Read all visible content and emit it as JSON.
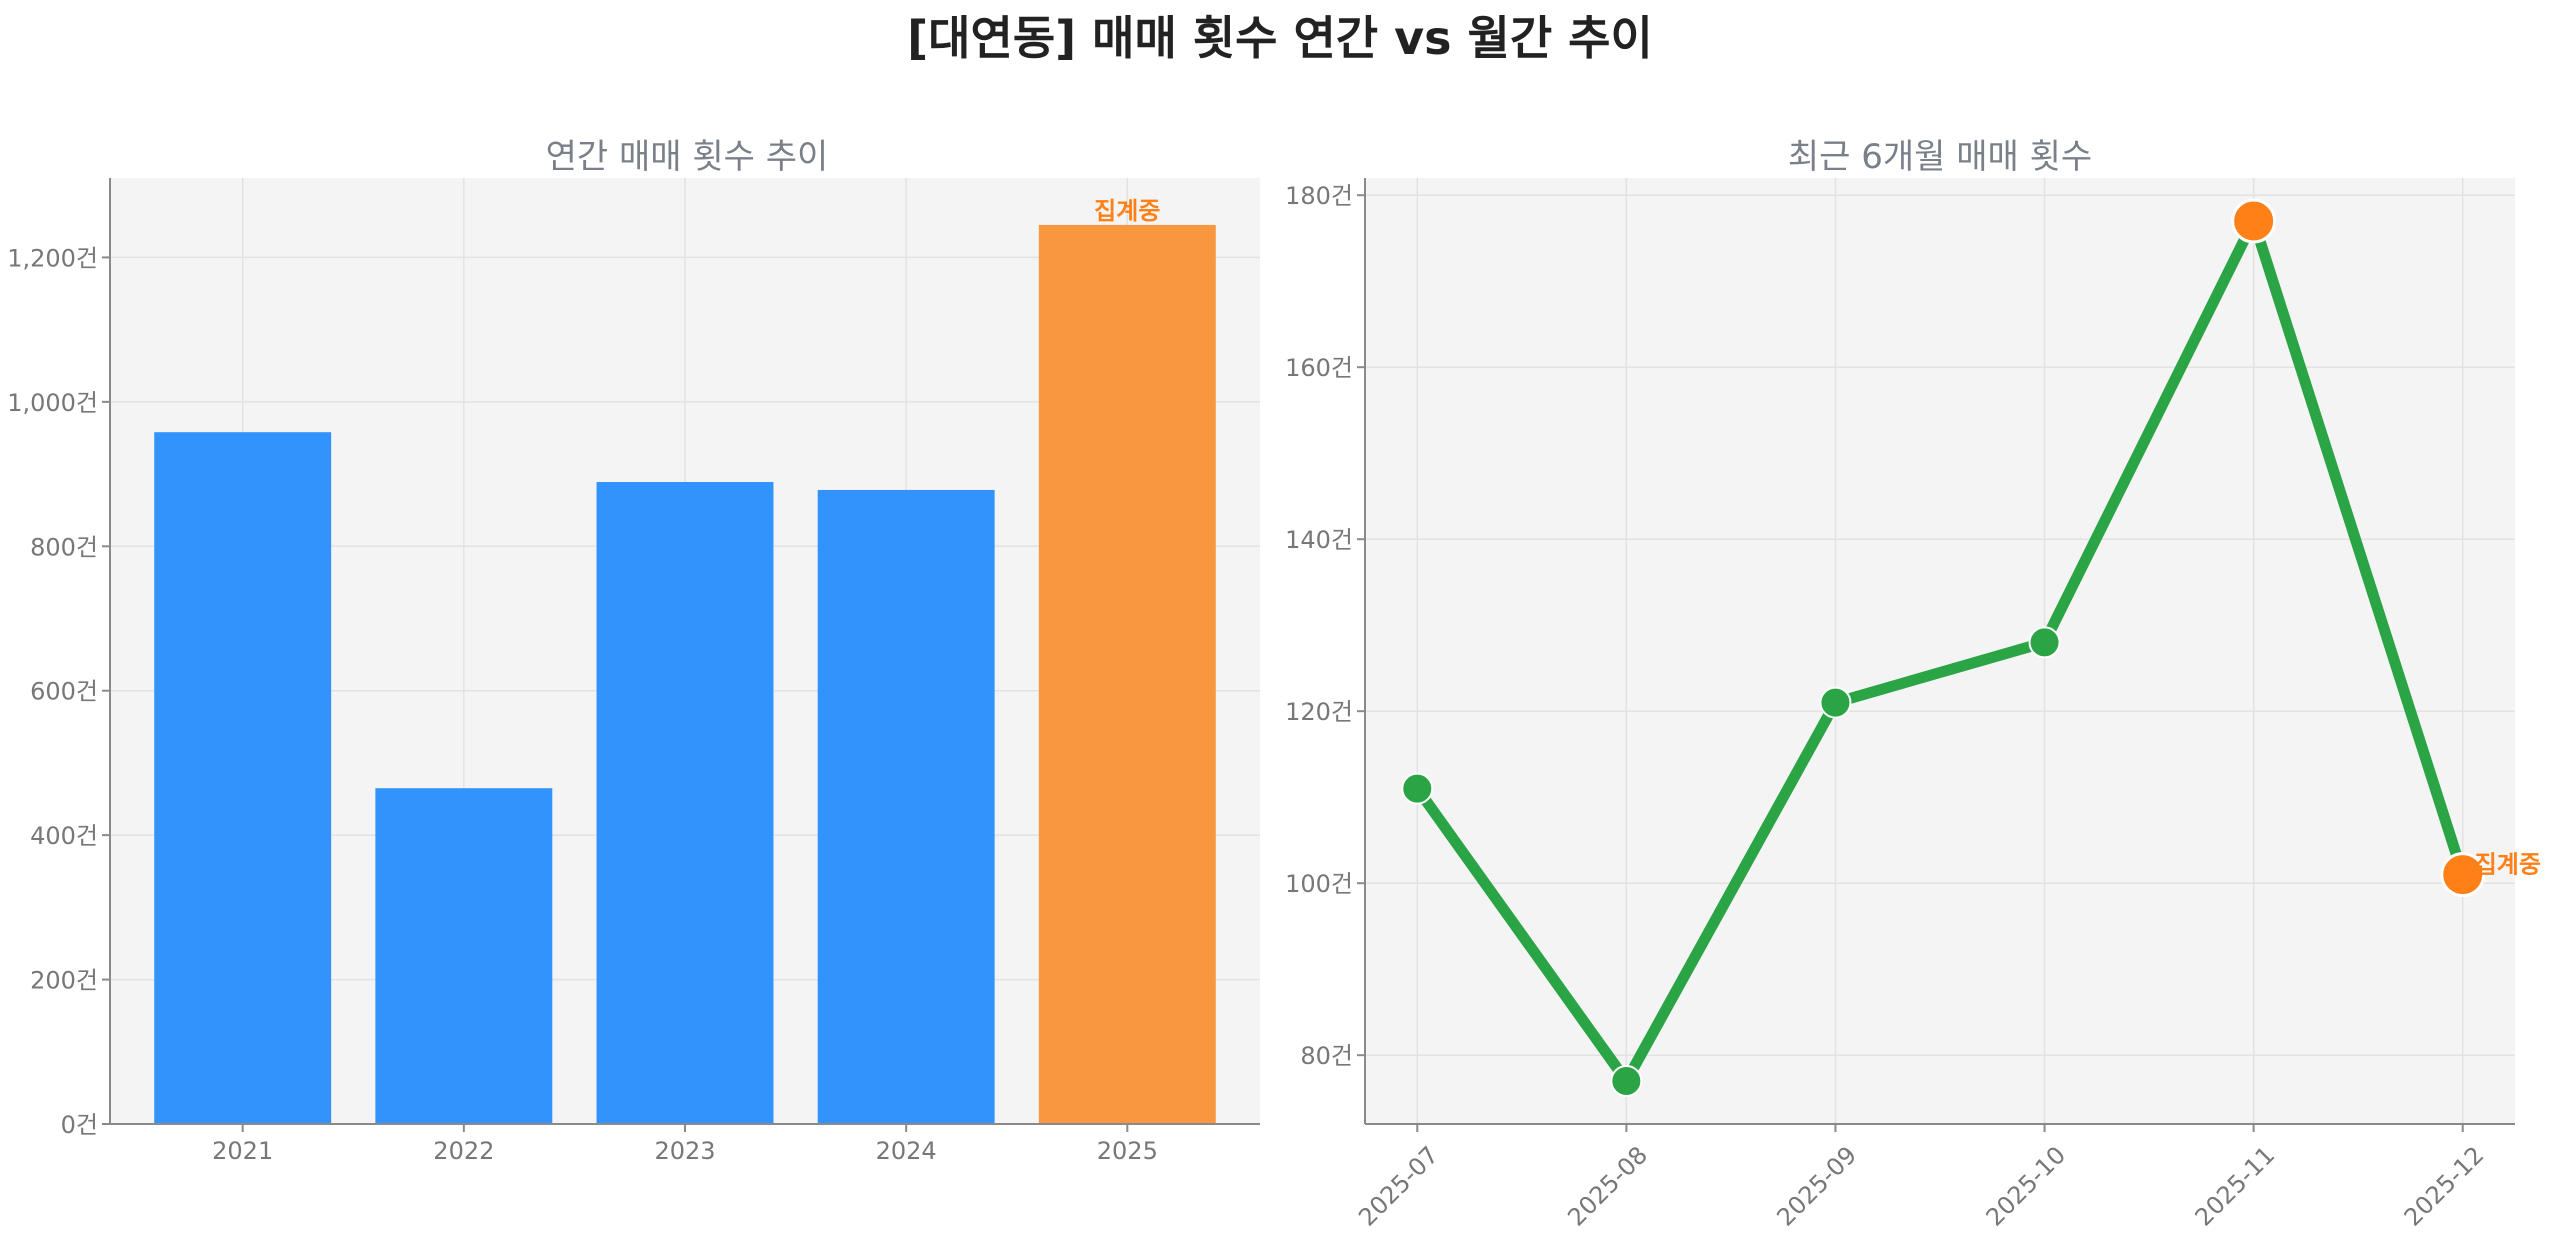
{
  "title": "[대연동] 매매 횟수 연간 vs 월간 추이",
  "colors": {
    "bar": "#3193fb",
    "highlight_bar": "#f99740",
    "line": "#2aa444",
    "highlight_point": "#ff8017",
    "annotation": "#ff8017"
  },
  "chart_data": [
    {
      "type": "bar",
      "title": "연간 매매 횟수 추이",
      "categories": [
        "2021",
        "2022",
        "2023",
        "2024",
        "2025"
      ],
      "values": [
        958,
        465,
        889,
        878,
        1245
      ],
      "highlight_index": 4,
      "annotation": "집계중",
      "ylim": [
        0,
        1310
      ],
      "yticks": [
        0,
        200,
        400,
        600,
        800,
        1000,
        1200
      ],
      "ytick_labels": [
        "0건",
        "200건",
        "400건",
        "600건",
        "800건",
        "1,000건",
        "1,200건"
      ],
      "grid": true
    },
    {
      "type": "line",
      "title": "최근 6개월 매매 횟수",
      "categories": [
        "2025-07",
        "2025-08",
        "2025-09",
        "2025-10",
        "2025-11",
        "2025-12"
      ],
      "values": [
        111,
        77,
        121,
        128,
        177,
        101
      ],
      "highlight_indices": [
        4,
        5
      ],
      "annotation": "집계중",
      "annotation_index": 5,
      "ylim": [
        72,
        182
      ],
      "yticks": [
        80,
        100,
        120,
        140,
        160,
        180
      ],
      "ytick_labels": [
        "80건",
        "100건",
        "120건",
        "140건",
        "160건",
        "180건"
      ],
      "grid": true
    }
  ]
}
